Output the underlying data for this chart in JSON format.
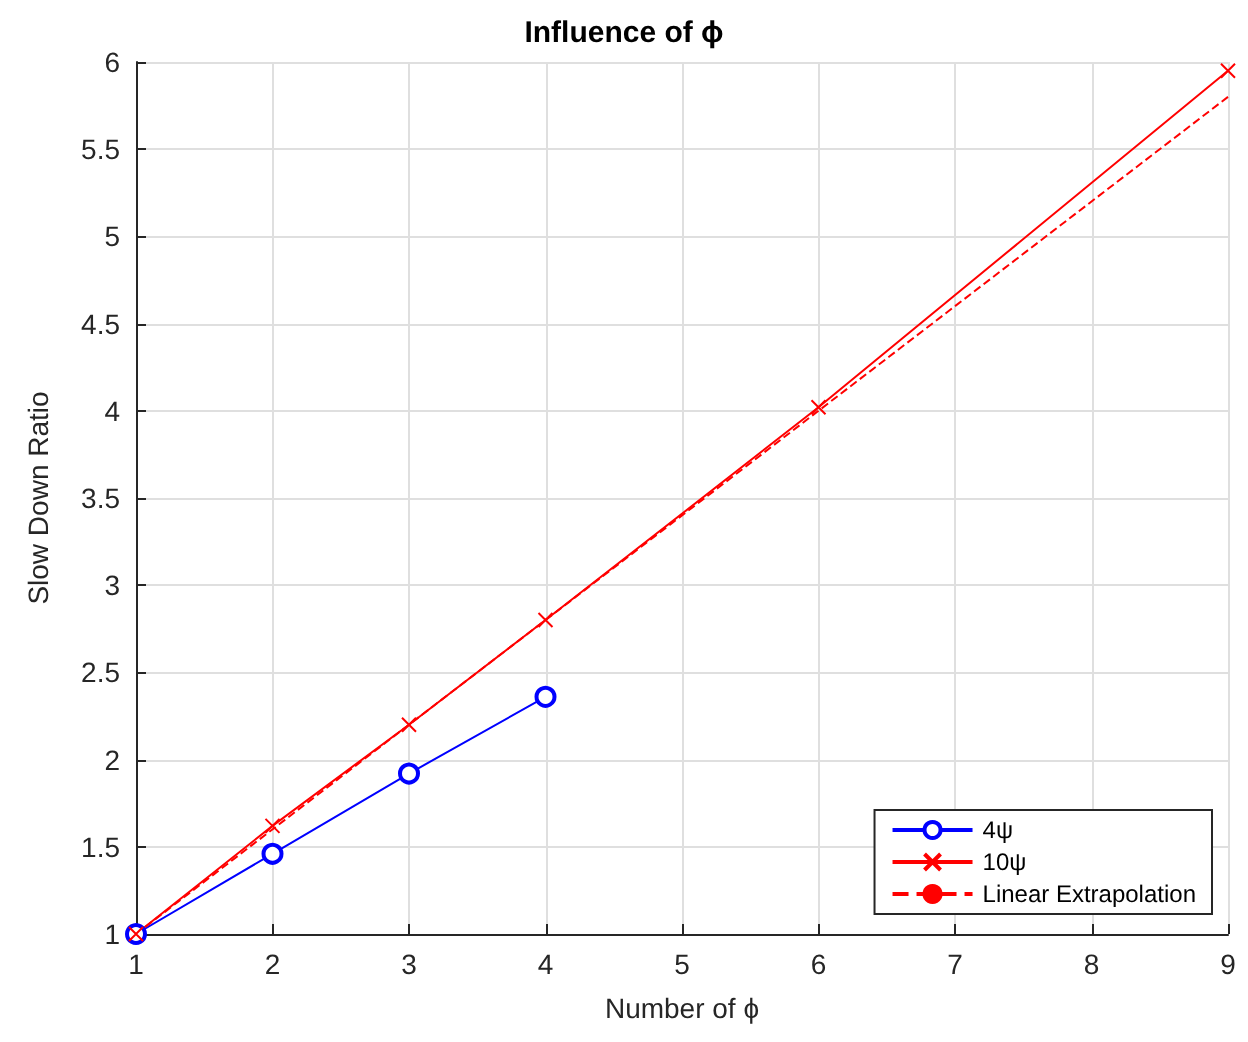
{
  "chart_data": {
    "type": "line",
    "title": "Influence of ϕ",
    "xlabel": "Number of ϕ",
    "ylabel": "Slow Down Ratio",
    "series": [
      {
        "name": "4ψ",
        "color": "#0000ff",
        "x": [
          1,
          2,
          3,
          4
        ],
        "values": [
          1,
          1.46,
          1.92,
          2.36
        ],
        "marker": "circle",
        "line_style": "solid"
      },
      {
        "name": "10ψ",
        "color": "#ff0000",
        "x": [
          1,
          2,
          3,
          4,
          6,
          9
        ],
        "values": [
          1,
          1.62,
          2.2,
          2.8,
          4.02,
          5.95
        ],
        "marker": "cross",
        "line_style": "solid"
      },
      {
        "name": "Linear Extrapolation",
        "color": "#ff0000",
        "x": [
          1,
          9
        ],
        "values": [
          1,
          5.8
        ],
        "marker": "none",
        "line_style": "dashed"
      }
    ],
    "xlim": [
      1,
      9
    ],
    "xticks": [
      1,
      2,
      3,
      4,
      5,
      6,
      7,
      8,
      9
    ],
    "ylim": [
      1,
      6
    ],
    "yticks": [
      1,
      1.5,
      2,
      2.5,
      3,
      3.5,
      4,
      4.5,
      5,
      5.5,
      6
    ],
    "grid": true,
    "legend": "bottom right"
  }
}
